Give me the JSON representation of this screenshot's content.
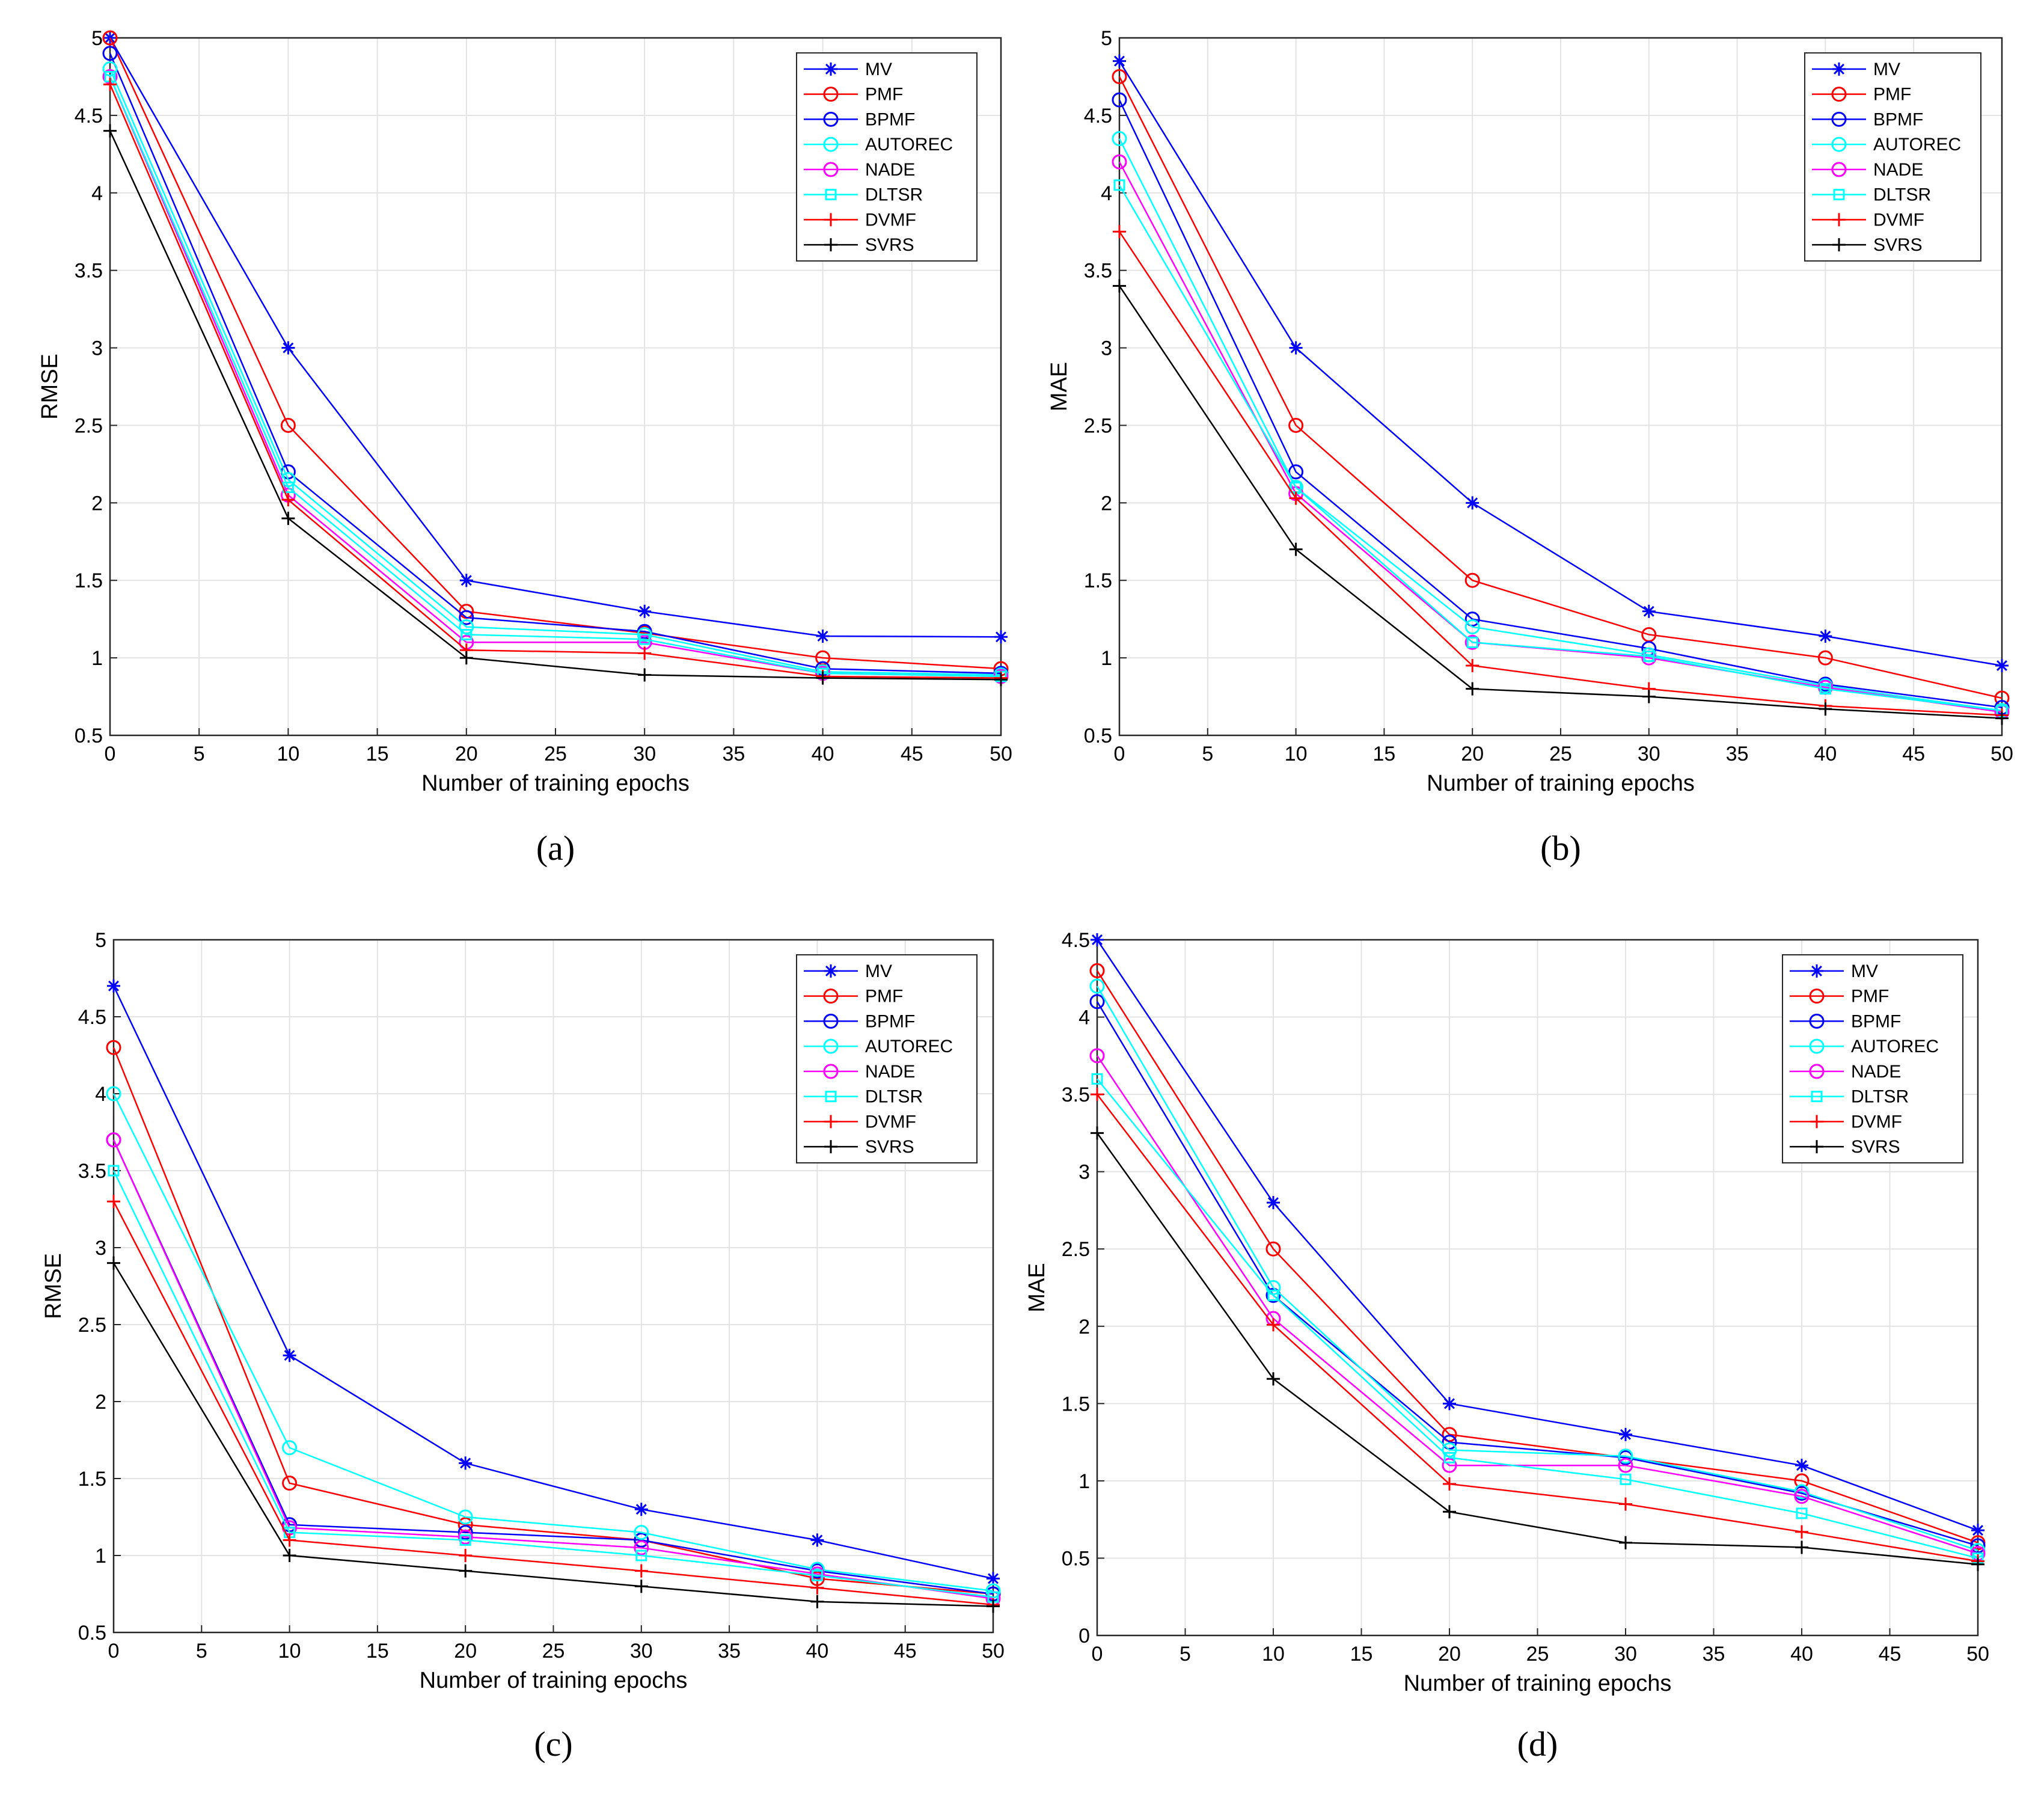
{
  "colors": {
    "MV": "#0000ff",
    "PMF": "#ff0000",
    "BPMF": "#0000ff",
    "AUTOREC": "#00ffff",
    "NADE": "#ff00ff",
    "DLTSR": "#00ffff",
    "DVMF": "#ff0000",
    "SVRS": "#000000"
  },
  "markers": {
    "MV": "star",
    "PMF": "circle",
    "BPMF": "circle",
    "AUTOREC": "circle",
    "NADE": "circle",
    "DLTSR": "square",
    "DVMF": "plus",
    "SVRS": "plus"
  },
  "chart_data": [
    {
      "type": "line",
      "panel_label": "a",
      "caption": "(a)",
      "xlabel": "Number of training epochs",
      "ylabel": "RMSE",
      "xlim": [
        0,
        50
      ],
      "ylim": [
        0.5,
        5
      ],
      "xticks": [
        "0",
        "5",
        "10",
        "15",
        "20",
        "25",
        "30",
        "35",
        "40",
        "45",
        "50"
      ],
      "yticks": [
        "0.5",
        "1",
        "1.5",
        "2",
        "2.5",
        "3",
        "3.5",
        "4",
        "4.5",
        "5"
      ],
      "grid": true,
      "legend_position": "top-right",
      "x": [
        0,
        10,
        20,
        30,
        40,
        50
      ],
      "series": [
        {
          "name": "MV",
          "values": [
            5.0,
            3.0,
            1.5,
            1.3,
            1.14,
            1.135
          ]
        },
        {
          "name": "PMF",
          "values": [
            5.0,
            2.5,
            1.3,
            1.16,
            1.0,
            0.93
          ]
        },
        {
          "name": "BPMF",
          "values": [
            4.9,
            2.2,
            1.26,
            1.17,
            0.93,
            0.9
          ]
        },
        {
          "name": "AUTOREC",
          "values": [
            4.8,
            2.15,
            1.2,
            1.15,
            0.91,
            0.89
          ]
        },
        {
          "name": "NADE",
          "values": [
            4.75,
            2.05,
            1.1,
            1.1,
            0.9,
            0.88
          ]
        },
        {
          "name": "DLTSR",
          "values": [
            4.75,
            2.1,
            1.15,
            1.12,
            0.9,
            0.88
          ]
        },
        {
          "name": "DVMF",
          "values": [
            4.7,
            2.02,
            1.05,
            1.03,
            0.88,
            0.87
          ]
        },
        {
          "name": "SVRS",
          "values": [
            4.4,
            1.9,
            1.0,
            0.89,
            0.87,
            0.86
          ]
        }
      ]
    },
    {
      "type": "line",
      "panel_label": "b",
      "caption": "(b)",
      "xlabel": "Number of training epochs",
      "ylabel": "MAE",
      "xlim": [
        0,
        50
      ],
      "ylim": [
        0.5,
        5
      ],
      "xticks": [
        "0",
        "5",
        "10",
        "15",
        "20",
        "25",
        "30",
        "35",
        "40",
        "45",
        "50"
      ],
      "yticks": [
        "0.5",
        "1",
        "1.5",
        "2",
        "2.5",
        "3",
        "3.5",
        "4",
        "4.5",
        "5"
      ],
      "grid": true,
      "legend_position": "top-right",
      "x": [
        0,
        10,
        20,
        30,
        40,
        50
      ],
      "series": [
        {
          "name": "MV",
          "values": [
            4.85,
            3.0,
            2.0,
            1.3,
            1.14,
            0.95
          ]
        },
        {
          "name": "PMF",
          "values": [
            4.75,
            2.5,
            1.5,
            1.15,
            1.0,
            0.74
          ]
        },
        {
          "name": "BPMF",
          "values": [
            4.6,
            2.2,
            1.25,
            1.06,
            0.83,
            0.68
          ]
        },
        {
          "name": "AUTOREC",
          "values": [
            4.35,
            2.1,
            1.2,
            1.02,
            0.82,
            0.66
          ]
        },
        {
          "name": "NADE",
          "values": [
            4.2,
            2.06,
            1.1,
            1.0,
            0.81,
            0.65
          ]
        },
        {
          "name": "DLTSR",
          "values": [
            4.05,
            2.1,
            1.1,
            1.01,
            0.8,
            0.66
          ]
        },
        {
          "name": "DVMF",
          "values": [
            3.75,
            2.03,
            0.95,
            0.8,
            0.69,
            0.63
          ]
        },
        {
          "name": "SVRS",
          "values": [
            3.4,
            1.7,
            0.8,
            0.75,
            0.67,
            0.61
          ]
        }
      ]
    },
    {
      "type": "line",
      "panel_label": "c",
      "caption": "(c)",
      "xlabel": "Number of training epochs",
      "ylabel": "RMSE",
      "xlim": [
        0,
        50
      ],
      "ylim": [
        0.5,
        5
      ],
      "xticks": [
        "0",
        "5",
        "10",
        "15",
        "20",
        "25",
        "30",
        "35",
        "40",
        "45",
        "50"
      ],
      "yticks": [
        "0.5",
        "1",
        "1.5",
        "2",
        "2.5",
        "3",
        "3.5",
        "4",
        "4.5",
        "5"
      ],
      "grid": true,
      "legend_position": "top-right",
      "x": [
        0,
        10,
        20,
        30,
        40,
        50
      ],
      "series": [
        {
          "name": "MV",
          "values": [
            4.7,
            2.3,
            1.6,
            1.3,
            1.1,
            0.85
          ]
        },
        {
          "name": "PMF",
          "values": [
            4.3,
            1.47,
            1.2,
            1.1,
            0.85,
            0.75
          ]
        },
        {
          "name": "BPMF",
          "values": [
            3.7,
            1.2,
            1.15,
            1.1,
            0.9,
            0.75
          ]
        },
        {
          "name": "AUTOREC",
          "values": [
            4.0,
            1.7,
            1.25,
            1.15,
            0.91,
            0.77
          ]
        },
        {
          "name": "NADE",
          "values": [
            3.7,
            1.18,
            1.12,
            1.05,
            0.88,
            0.72
          ]
        },
        {
          "name": "DLTSR",
          "values": [
            3.5,
            1.15,
            1.1,
            1.0,
            0.87,
            0.73
          ]
        },
        {
          "name": "DVMF",
          "values": [
            3.3,
            1.1,
            1.0,
            0.9,
            0.79,
            0.68
          ]
        },
        {
          "name": "SVRS",
          "values": [
            2.9,
            1.0,
            0.9,
            0.8,
            0.7,
            0.67
          ]
        }
      ]
    },
    {
      "type": "line",
      "panel_label": "d",
      "caption": "(d)",
      "xlabel": "Number of training epochs",
      "ylabel": "MAE",
      "xlim": [
        0,
        50
      ],
      "ylim": [
        0,
        4.5
      ],
      "xticks": [
        "0",
        "5",
        "10",
        "15",
        "20",
        "25",
        "30",
        "35",
        "40",
        "45",
        "50"
      ],
      "yticks": [
        "0",
        "0.5",
        "1",
        "1.5",
        "2",
        "2.5",
        "3",
        "3.5",
        "4",
        "4.5"
      ],
      "grid": true,
      "legend_position": "top-right",
      "x": [
        0,
        10,
        20,
        30,
        40,
        50
      ],
      "series": [
        {
          "name": "MV",
          "values": [
            4.5,
            2.8,
            1.5,
            1.3,
            1.1,
            0.68
          ]
        },
        {
          "name": "PMF",
          "values": [
            4.3,
            2.5,
            1.3,
            1.15,
            1.0,
            0.6
          ]
        },
        {
          "name": "BPMF",
          "values": [
            4.1,
            2.2,
            1.25,
            1.15,
            0.92,
            0.58
          ]
        },
        {
          "name": "AUTOREC",
          "values": [
            4.2,
            2.25,
            1.2,
            1.16,
            0.93,
            0.55
          ]
        },
        {
          "name": "NADE",
          "values": [
            3.75,
            2.05,
            1.1,
            1.1,
            0.9,
            0.53
          ]
        },
        {
          "name": "DLTSR",
          "values": [
            3.6,
            2.2,
            1.15,
            1.01,
            0.79,
            0.5
          ]
        },
        {
          "name": "DVMF",
          "values": [
            3.5,
            2.01,
            0.98,
            0.85,
            0.67,
            0.48
          ]
        },
        {
          "name": "SVRS",
          "values": [
            3.25,
            1.66,
            0.8,
            0.6,
            0.57,
            0.46
          ]
        }
      ]
    }
  ]
}
